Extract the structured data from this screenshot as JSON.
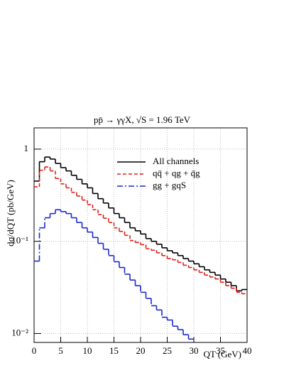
{
  "chart_data": {
    "type": "histogram",
    "title": "pp̄ → γγX, √S = 1.96 TeV",
    "xlabel": "QT (GeV)",
    "ylabel": "dσ/dQT (pb/GeV)",
    "log_y": true,
    "grid": true,
    "bins": [
      0,
      1,
      2,
      3,
      4,
      5,
      6,
      7,
      8,
      9,
      10,
      11,
      12,
      13,
      14,
      15,
      16,
      17,
      18,
      19,
      20,
      21,
      22,
      23,
      24,
      25,
      26,
      27,
      28,
      29,
      30,
      31,
      32,
      33,
      34,
      35,
      36,
      37,
      38,
      39,
      40
    ],
    "series": [
      {
        "name": "All channels",
        "color": "#000000",
        "dash": "solid",
        "values": [
          0.45,
          0.73,
          0.82,
          0.78,
          0.7,
          0.63,
          0.58,
          0.52,
          0.47,
          0.42,
          0.38,
          0.33,
          0.29,
          0.26,
          0.23,
          0.2,
          0.18,
          0.16,
          0.14,
          0.13,
          0.12,
          0.107,
          0.1,
          0.093,
          0.085,
          0.079,
          0.075,
          0.07,
          0.065,
          0.061,
          0.057,
          0.053,
          0.049,
          0.046,
          0.043,
          0.039,
          0.036,
          0.033,
          0.029,
          0.03
        ]
      },
      {
        "name": "qq̄ + qg + q̄g",
        "color": "#e0201a",
        "dash": "dashed",
        "values": [
          0.39,
          0.59,
          0.64,
          0.58,
          0.48,
          0.42,
          0.38,
          0.34,
          0.31,
          0.28,
          0.25,
          0.22,
          0.195,
          0.178,
          0.16,
          0.14,
          0.128,
          0.116,
          0.102,
          0.097,
          0.092,
          0.083,
          0.08,
          0.075,
          0.07,
          0.065,
          0.063,
          0.059,
          0.055,
          0.052,
          0.049,
          0.046,
          0.043,
          0.041,
          0.039,
          0.036,
          0.033,
          0.031,
          0.028,
          0.027
        ]
      },
      {
        "name": "gg + gqS",
        "color": "#1a2ad0",
        "dash": "dashdot",
        "values": [
          0.061,
          0.14,
          0.18,
          0.2,
          0.22,
          0.21,
          0.2,
          0.18,
          0.16,
          0.14,
          0.126,
          0.11,
          0.095,
          0.082,
          0.07,
          0.06,
          0.052,
          0.044,
          0.038,
          0.033,
          0.028,
          0.024,
          0.02,
          0.018,
          0.015,
          0.014,
          0.012,
          0.011,
          0.0097,
          0.0087,
          null,
          null,
          null,
          null,
          null,
          null,
          null,
          null,
          null,
          null
        ]
      }
    ],
    "xlim": [
      0,
      40
    ],
    "xticks": [
      0,
      5,
      10,
      15,
      20,
      25,
      30,
      35,
      40
    ],
    "ylim": [
      0.008,
      1.7
    ],
    "yticks": [
      {
        "value": 0.01,
        "label": "10⁻²"
      },
      {
        "value": 0.1,
        "label": "10⁻¹"
      },
      1
    ]
  }
}
